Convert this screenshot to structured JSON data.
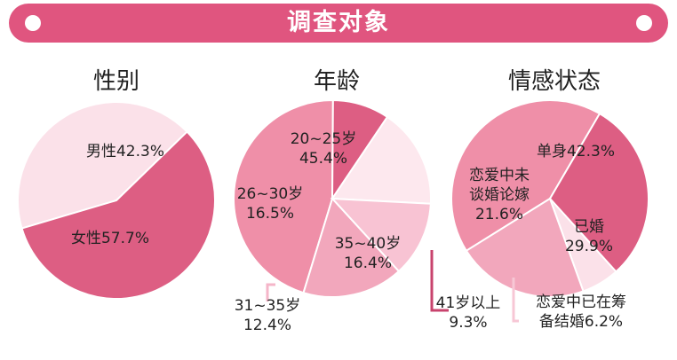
{
  "banner": {
    "title": "调查对象",
    "color": "#e0557f"
  },
  "chart_data": [
    {
      "type": "pie",
      "title": "性别",
      "slices": [
        {
          "label": "男性",
          "value": 42.3,
          "color": "#fbe1e9"
        },
        {
          "label": "女性",
          "value": 57.7,
          "color": "#dd5e83"
        }
      ]
    },
    {
      "type": "pie",
      "title": "年龄",
      "slices": [
        {
          "label": "20~25岁",
          "value": 45.4,
          "color": "#ef8fa8"
        },
        {
          "label": "41岁以上",
          "value": 9.3,
          "color": "#dd5e83"
        },
        {
          "label": "35~40岁",
          "value": 16.4,
          "color": "#fde8ee"
        },
        {
          "label": "31~35岁",
          "value": 12.4,
          "color": "#f8c3d3"
        },
        {
          "label": "26~30岁",
          "value": 16.5,
          "color": "#f2a7bc"
        }
      ]
    },
    {
      "type": "pie",
      "title": "情感状态",
      "slices": [
        {
          "label": "单身",
          "value": 42.3,
          "color": "#ef8fa8"
        },
        {
          "label": "已婚",
          "value": 29.9,
          "color": "#dd5e83"
        },
        {
          "label": "恋爱中已在筹备结婚",
          "value": 6.2,
          "color": "#fbe1e9"
        },
        {
          "label": "恋爱中未谈婚论嫁",
          "value": 21.6,
          "color": "#f2a7bc"
        }
      ]
    }
  ]
}
